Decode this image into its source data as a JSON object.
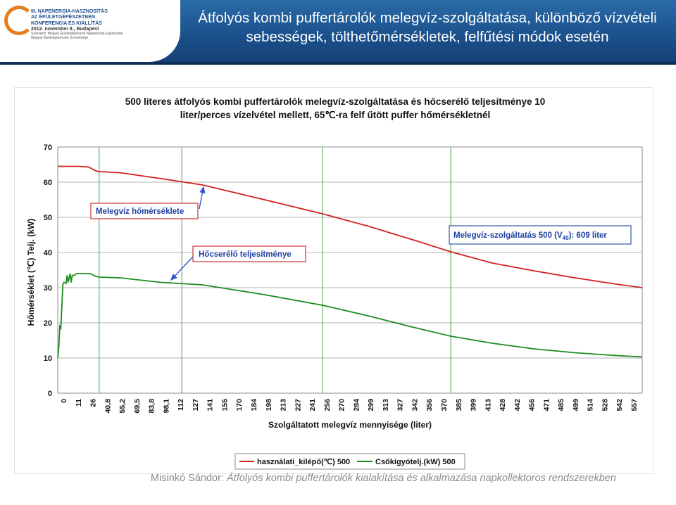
{
  "slide": {
    "title_line1": "Átfolyós kombi puffertárolók melegvíz-szolgáltatása, különböző vízvételi",
    "title_line2": "sebességek, tölthetőmérsékletek, felfűtési módok esetén",
    "logo": {
      "line1": "III. NAPENERGIA-HASZNOSÍTÁS",
      "line2": "AZ ÉPÜLETGÉPÉSZETBEN",
      "line3": "KONFERENCIA ÉS KIÁLLÍTÁS",
      "line4": "2012. november 8., Budapest",
      "line5": "Szervező: Magyar Épületgépészek Napenergia Egyesülete",
      "line6": "Magyar Épületgépészek Szövetsége"
    },
    "footer_author": "Misinkó Sándor: ",
    "footer_work": "Átfolyós kombi puffertárolók kialakítása és alkalmazása napkollektoros rendszerekben",
    "colors": {
      "header": "#1a4f8a",
      "red": "#d42020",
      "green": "#1e8c1e",
      "callout_border": "#cc3333",
      "note_border": "#3355aa"
    }
  },
  "chart_data": {
    "type": "line",
    "title_line1": "500 literes átfolyós kombi puffertárolók melegvíz-szolgáltatása és hőcserélő teljesítménye 10",
    "title_line2": "liter/perces vízelvétel mellett, 65℃-ra felf űtött puffer hőmérsékletnél",
    "xlabel": "Szolgáltatott melegvíz mennyisége (liter)",
    "ylabel": "Hőmérséklet (℃) Telj. (kW)",
    "xlim": [
      0,
      565
    ],
    "ylim": [
      0,
      70
    ],
    "yticks": [
      0,
      10,
      20,
      30,
      40,
      50,
      60,
      70
    ],
    "xticks": [
      "0",
      "11",
      "26",
      "40,8",
      "55,2",
      "69,5",
      "83,8",
      "98,1",
      "112",
      "127",
      "141",
      "155",
      "170",
      "184",
      "198",
      "213",
      "227",
      "241",
      "256",
      "270",
      "284",
      "299",
      "313",
      "327",
      "342",
      "356",
      "370",
      "385",
      "399",
      "413",
      "428",
      "442",
      "456",
      "471",
      "485",
      "499",
      "514",
      "528",
      "542",
      "557"
    ],
    "grid": "horizontal",
    "vlines": [
      40,
      120,
      256,
      380
    ],
    "series": [
      {
        "name": "használati_kilépő(℃) 500",
        "color": "#d42020",
        "x": [
          0,
          20,
          30,
          36,
          40,
          60,
          100,
          140,
          200,
          256,
          300,
          350,
          380,
          420,
          460,
          500,
          540,
          565
        ],
        "y": [
          64.5,
          64.5,
          64.3,
          63.3,
          63.0,
          62.7,
          61.0,
          59.2,
          55.0,
          51.0,
          47.5,
          43.0,
          40.2,
          37.0,
          34.8,
          32.8,
          31.0,
          30.0
        ]
      },
      {
        "name": "Csőkígyótelj.(kW) 500",
        "color": "#1e8c1e",
        "x": [
          0,
          1,
          2,
          3,
          5,
          6,
          8,
          9,
          10,
          12,
          13,
          14,
          16,
          18,
          20,
          26,
          32,
          36,
          40,
          60,
          100,
          140,
          200,
          256,
          300,
          340,
          380,
          420,
          460,
          500,
          540,
          565
        ],
        "y": [
          10,
          13,
          19,
          18.5,
          31,
          31.5,
          31.2,
          33.5,
          31.5,
          34,
          31.5,
          33.5,
          33.5,
          34,
          34,
          34,
          34,
          33.3,
          33.0,
          32.8,
          31.5,
          30.8,
          28.0,
          25.0,
          22.0,
          19.0,
          16.2,
          14.2,
          12.6,
          11.5,
          10.7,
          10.3
        ]
      }
    ],
    "annotations": [
      {
        "text": "Melegvíz hőmérséklete",
        "points_to_x": 128,
        "series": 0
      },
      {
        "text": "Hőcserélő teljesítménye",
        "points_to_x": 98,
        "series": 1
      },
      {
        "text_main": "Melegvíz-szolgáltatás 500 (V",
        "text_sub": "40",
        "text_end": "): 609 liter"
      }
    ],
    "legend_position": "bottom"
  }
}
